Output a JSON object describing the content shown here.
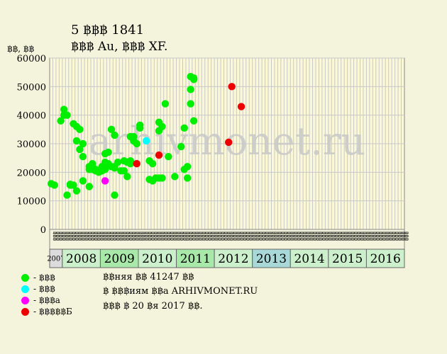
{
  "header": {
    "title": "5 ฿฿฿ 1841",
    "subtitle": "฿฿฿ Au, ฿฿฿ XF.",
    "units": "฿฿, ฿฿"
  },
  "watermark": "arhivmonet.ru",
  "legend": [
    {
      "label": "- ฿฿฿",
      "color": "#00ee00"
    },
    {
      "label": "- ฿฿฿",
      "color": "#00ffff"
    },
    {
      "label": "- ฿฿฿a",
      "color": "#ff00ff"
    },
    {
      "label": "- ฿฿฿฿฿Б",
      "color": "#ee0000"
    }
  ],
  "notes": [
    "฿฿няя ฿฿ 41247 ฿฿",
    "฿ ฿฿฿иям ฿฿a ARHIVMONET.RU",
    "฿฿฿ ฿ 20 ฿я 2017 ฿฿."
  ],
  "chart_data": {
    "type": "scatter",
    "ylim": [
      0,
      60000
    ],
    "yticks": [
      0,
      10000,
      20000,
      30000,
      40000,
      50000,
      60000
    ],
    "ytick_labels": [
      "0",
      "10000",
      "20000",
      "30000",
      "40000",
      "50000",
      "60000"
    ],
    "years": [
      "2007",
      "2008",
      "2009",
      "2010",
      "2011",
      "2012",
      "2013",
      "2014",
      "2015",
      "2016"
    ],
    "year_colors": [
      "#dcdcdc",
      "#ccf0cc",
      "#a8e8a8",
      "#ccf0cc",
      "#a8e8a8",
      "#ccf0cc",
      "#a8d8d8",
      "#ccf0cc",
      "#ccf0cc",
      "#ccf0cc"
    ],
    "month_labels": [
      "฿฿฿",
      "฿฿฿",
      "฿฿฿",
      "฿฿฿",
      "฿฿฿",
      "฿฿฿",
      "฿฿฿",
      "฿฿฿",
      "฿฿฿",
      "฿฿฿",
      "฿฿฿",
      "฿฿฿"
    ],
    "x_start": "2007-09",
    "x_end": "2016-12",
    "series": [
      {
        "name": "- ฿฿฿",
        "color": "#00ee00",
        "points": [
          [
            "2007-09",
            16000
          ],
          [
            "2007-10",
            15500
          ],
          [
            "2007-12",
            38000
          ],
          [
            "2008-01",
            42000
          ],
          [
            "2008-01",
            40000
          ],
          [
            "2008-02",
            12000
          ],
          [
            "2008-02",
            40000
          ],
          [
            "2008-03",
            15500
          ],
          [
            "2008-03",
            15800
          ],
          [
            "2008-04",
            15500
          ],
          [
            "2008-04",
            37000
          ],
          [
            "2008-05",
            36000
          ],
          [
            "2008-05",
            13500
          ],
          [
            "2008-05",
            31000
          ],
          [
            "2008-06",
            35000
          ],
          [
            "2008-06",
            28000
          ],
          [
            "2008-07",
            30000
          ],
          [
            "2008-07",
            25500
          ],
          [
            "2008-07",
            17000
          ],
          [
            "2008-09",
            22000
          ],
          [
            "2008-09",
            21000
          ],
          [
            "2008-09",
            15000
          ],
          [
            "2008-10",
            23000
          ],
          [
            "2008-10",
            22000
          ],
          [
            "2008-10",
            21000
          ],
          [
            "2008-11",
            20500
          ],
          [
            "2008-11",
            21000
          ],
          [
            "2008-12",
            20000
          ],
          [
            "2009-01",
            22000
          ],
          [
            "2009-01",
            20500
          ],
          [
            "2009-02",
            21000
          ],
          [
            "2009-02",
            26500
          ],
          [
            "2009-02",
            23500
          ],
          [
            "2009-03",
            27000
          ],
          [
            "2009-03",
            23000
          ],
          [
            "2009-04",
            22000
          ],
          [
            "2009-04",
            35000
          ],
          [
            "2009-05",
            33000
          ],
          [
            "2009-05",
            22000
          ],
          [
            "2009-05",
            21500
          ],
          [
            "2009-05",
            12000
          ],
          [
            "2009-06",
            23500
          ],
          [
            "2009-07",
            20500
          ],
          [
            "2009-08",
            20500
          ],
          [
            "2009-08",
            24000
          ],
          [
            "2009-09",
            23500
          ],
          [
            "2009-09",
            18500
          ],
          [
            "2009-10",
            24000
          ],
          [
            "2009-10",
            23000
          ],
          [
            "2009-10",
            32500
          ],
          [
            "2009-11",
            32500
          ],
          [
            "2009-11",
            31000
          ],
          [
            "2009-12",
            30000
          ],
          [
            "2010-01",
            36500
          ],
          [
            "2010-01",
            35500
          ],
          [
            "2010-04",
            17500
          ],
          [
            "2010-04",
            24000
          ],
          [
            "2010-05",
            17000
          ],
          [
            "2010-05",
            23000
          ],
          [
            "2010-06",
            18000
          ],
          [
            "2010-07",
            34500
          ],
          [
            "2010-07",
            37500
          ],
          [
            "2010-07",
            18000
          ],
          [
            "2010-08",
            18000
          ],
          [
            "2010-08",
            36000
          ],
          [
            "2010-09",
            44000
          ],
          [
            "2010-10",
            25500
          ],
          [
            "2010-12",
            18500
          ],
          [
            "2011-02",
            29000
          ],
          [
            "2011-03",
            35500
          ],
          [
            "2011-03",
            21000
          ],
          [
            "2011-04",
            22000
          ],
          [
            "2011-04",
            18000
          ],
          [
            "2011-05",
            44000
          ],
          [
            "2011-05",
            49000
          ],
          [
            "2011-05",
            53500
          ],
          [
            "2011-06",
            53000
          ],
          [
            "2011-06",
            52500
          ],
          [
            "2011-06",
            38000
          ]
        ]
      },
      {
        "name": "- ฿฿฿",
        "color": "#00ffff",
        "points": [
          [
            "2010-03",
            31000
          ]
        ]
      },
      {
        "name": "- ฿฿฿a",
        "color": "#ff00ff",
        "points": [
          [
            "2009-02",
            17000
          ]
        ]
      },
      {
        "name": "- ฿฿฿฿฿Б",
        "color": "#ee0000",
        "points": [
          [
            "2009-12",
            23000
          ],
          [
            "2010-07",
            26000
          ],
          [
            "2012-05",
            30500
          ],
          [
            "2012-06",
            50000
          ],
          [
            "2012-09",
            43000
          ]
        ]
      }
    ]
  }
}
